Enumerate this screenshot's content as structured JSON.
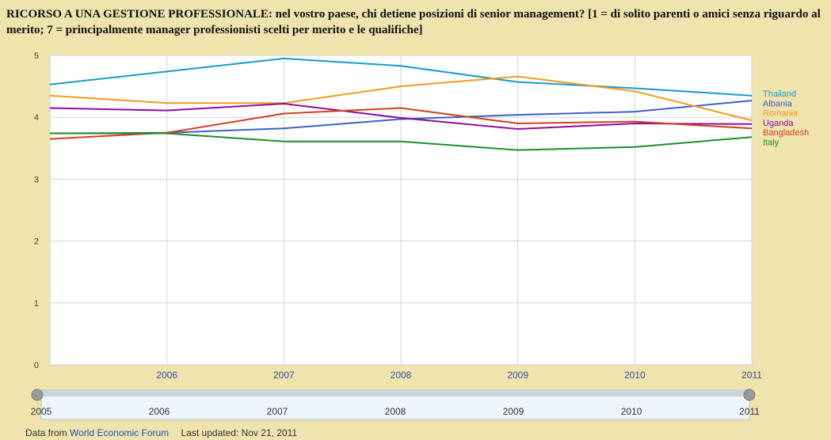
{
  "title_bold": "RICORSO A UNA GESTIONE PROFESSIONALE:",
  "title_rest": " nel vostro paese, chi  detiene posizioni di senior management? [1 = di solito parenti o amici senza riguardo al merito; 7 = principalmente manager professionisti scelti per merito e le qualifiche]",
  "footer": {
    "data_from": "Data from",
    "source": "World Economic Forum",
    "updated": "Last updated: Nov 21, 2011"
  },
  "timeline": {
    "labels": [
      "2005",
      "2006",
      "2007",
      "2008",
      "2009",
      "2010",
      "2011"
    ]
  },
  "chart_data": {
    "type": "line",
    "x": [
      2005,
      2006,
      2007,
      2008,
      2009,
      2010,
      2011
    ],
    "x_tick_labels": [
      "2006",
      "2007",
      "2008",
      "2009",
      "2010",
      "2011"
    ],
    "ylim": [
      0,
      5
    ],
    "y_ticks": [
      0,
      1,
      2,
      3,
      4,
      5
    ],
    "grid": true,
    "legend_placement": "right",
    "series": [
      {
        "name": "Thailand",
        "color": "#1a9bc8",
        "values": [
          4.53,
          4.74,
          4.95,
          4.83,
          4.57,
          4.47,
          4.35
        ]
      },
      {
        "name": "Albania",
        "color": "#3a62c3",
        "values": [
          3.74,
          3.75,
          3.82,
          3.97,
          4.04,
          4.09,
          4.27
        ]
      },
      {
        "name": "Romania",
        "color": "#f29b20",
        "values": [
          4.35,
          4.23,
          4.23,
          4.5,
          4.66,
          4.42,
          3.95
        ]
      },
      {
        "name": "Uganda",
        "color": "#8e0c9a",
        "values": [
          4.15,
          4.11,
          4.22,
          3.99,
          3.81,
          3.9,
          3.89
        ]
      },
      {
        "name": "Bangladesh",
        "color": "#d0401e",
        "values": [
          3.65,
          3.75,
          4.06,
          4.15,
          3.9,
          3.93,
          3.82
        ]
      },
      {
        "name": "Italy",
        "color": "#1c8e2a",
        "values": [
          3.74,
          3.74,
          3.61,
          3.61,
          3.47,
          3.52,
          3.68
        ]
      }
    ]
  }
}
